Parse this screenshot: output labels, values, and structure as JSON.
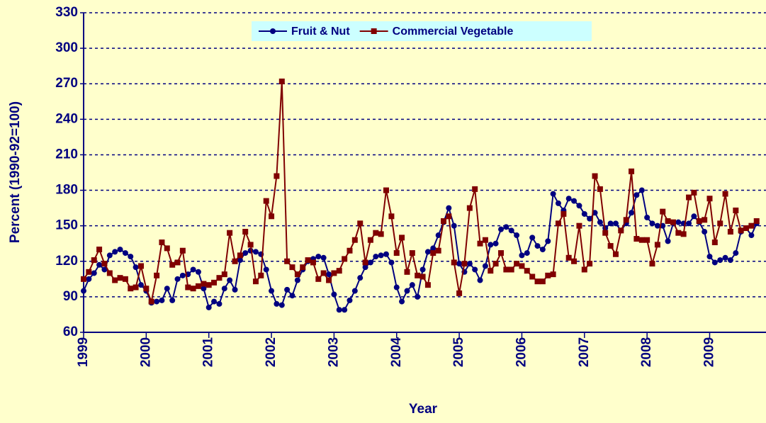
{
  "chart_data": {
    "type": "line",
    "y_label": "Percent (1990-92=100)",
    "x_label": "Year",
    "xlim": [
      1999,
      2009.9
    ],
    "xticks": [
      1999,
      2000,
      2001,
      2002,
      2003,
      2004,
      2005,
      2006,
      2007,
      2008,
      2009
    ],
    "ylim": [
      60,
      330
    ],
    "yticks": [
      60,
      90,
      120,
      150,
      180,
      210,
      240,
      270,
      300,
      330
    ],
    "grid": true,
    "legend": "top",
    "x": [
      1999,
      1999.083,
      1999.167,
      1999.25,
      1999.333,
      1999.417,
      1999.5,
      1999.583,
      1999.667,
      1999.75,
      1999.833,
      1999.917,
      2000,
      2000.083,
      2000.167,
      2000.25,
      2000.333,
      2000.417,
      2000.5,
      2000.583,
      2000.667,
      2000.75,
      2000.833,
      2000.917,
      2001,
      2001.083,
      2001.167,
      2001.25,
      2001.333,
      2001.417,
      2001.5,
      2001.583,
      2001.667,
      2001.75,
      2001.833,
      2001.917,
      2002,
      2002.083,
      2002.167,
      2002.25,
      2002.333,
      2002.417,
      2002.5,
      2002.583,
      2002.667,
      2002.75,
      2002.833,
      2002.917,
      2003,
      2003.083,
      2003.167,
      2003.25,
      2003.333,
      2003.417,
      2003.5,
      2003.583,
      2003.667,
      2003.75,
      2003.833,
      2003.917,
      2004,
      2004.083,
      2004.167,
      2004.25,
      2004.333,
      2004.417,
      2004.5,
      2004.583,
      2004.667,
      2004.75,
      2004.833,
      2004.917,
      2005,
      2005.083,
      2005.167,
      2005.25,
      2005.333,
      2005.417,
      2005.5,
      2005.583,
      2005.667,
      2005.75,
      2005.833,
      2005.917,
      2006,
      2006.083,
      2006.167,
      2006.25,
      2006.333,
      2006.417,
      2006.5,
      2006.583,
      2006.667,
      2006.75,
      2006.833,
      2006.917,
      2007,
      2007.083,
      2007.167,
      2007.25,
      2007.333,
      2007.417,
      2007.5,
      2007.583,
      2007.667,
      2007.75,
      2007.833,
      2007.917,
      2008,
      2008.083,
      2008.167,
      2008.25,
      2008.333,
      2008.417,
      2008.5,
      2008.583,
      2008.667,
      2008.75,
      2008.833,
      2008.917,
      2009,
      2009.083,
      2009.167,
      2009.25,
      2009.333,
      2009.417,
      2009.5,
      2009.583,
      2009.667,
      2009.75
    ],
    "series": [
      {
        "name": "Fruit & Nut",
        "color": "#000080",
        "marker": "circle",
        "values": [
          95,
          105,
          110,
          117,
          113,
          125,
          128,
          130,
          127,
          124,
          115,
          100,
          95,
          85,
          86,
          87,
          97,
          87,
          105,
          108,
          109,
          113,
          111,
          97,
          81,
          86,
          84,
          97,
          104,
          96,
          121,
          127,
          129,
          128,
          126,
          113,
          95,
          84,
          83,
          96,
          91,
          104,
          113,
          120,
          122,
          124,
          123,
          109,
          92,
          79,
          79,
          87,
          95,
          106,
          115,
          119,
          124,
          125,
          126,
          119,
          98,
          86,
          95,
          100,
          90,
          113,
          128,
          131,
          142,
          153,
          165,
          150,
          118,
          111,
          118,
          113,
          104,
          116,
          134,
          135,
          147,
          149,
          146,
          142,
          125,
          127,
          140,
          133,
          130,
          137,
          177,
          169,
          163,
          173,
          171,
          167,
          160,
          156,
          161,
          153,
          148,
          152,
          152,
          146,
          152,
          161,
          176,
          180,
          157,
          152,
          150,
          150,
          137,
          152,
          153,
          152,
          152,
          158,
          153,
          145,
          124,
          119,
          121,
          123,
          121,
          127,
          145,
          148,
          142,
          152
        ]
      },
      {
        "name": "Commercial Vegetable",
        "color": "#800000",
        "marker": "square",
        "values": [
          105,
          111,
          121,
          130,
          118,
          110,
          104,
          106,
          105,
          97,
          98,
          116,
          97,
          86,
          108,
          136,
          131,
          117,
          119,
          129,
          98,
          97,
          99,
          101,
          100,
          102,
          106,
          109,
          144,
          120,
          125,
          145,
          134,
          103,
          108,
          171,
          158,
          192,
          272,
          120,
          115,
          109,
          115,
          121,
          119,
          105,
          110,
          104,
          110,
          112,
          122,
          129,
          138,
          152,
          119,
          138,
          144,
          143,
          180,
          158,
          127,
          140,
          111,
          127,
          108,
          107,
          100,
          127,
          129,
          154,
          158,
          119,
          93,
          118,
          165,
          181,
          135,
          138,
          112,
          118,
          127,
          113,
          113,
          118,
          116,
          112,
          107,
          103,
          103,
          108,
          109,
          152,
          160,
          123,
          120,
          150,
          113,
          118,
          192,
          181,
          144,
          133,
          126,
          146,
          155,
          196,
          139,
          138,
          138,
          118,
          134,
          162,
          154,
          153,
          144,
          143,
          174,
          178,
          154,
          155,
          173,
          136,
          152,
          177,
          145,
          163,
          146,
          148,
          150,
          154
        ]
      }
    ]
  }
}
